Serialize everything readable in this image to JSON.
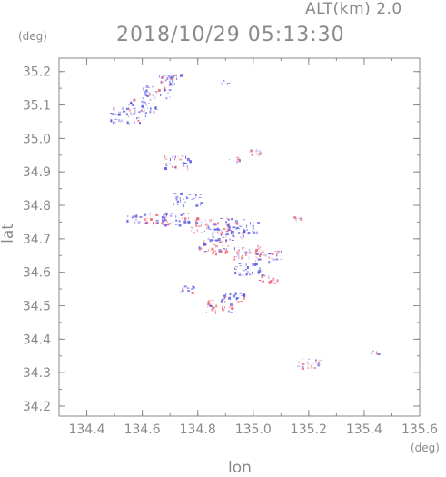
{
  "header": {
    "altitude_label": "ALT(km) 2.0",
    "datetime": "2018/10/29 05:13:30",
    "y_unit": "(deg)",
    "x_unit": "(deg)"
  },
  "axes": {
    "xlabel": "lon",
    "ylabel": "lat",
    "xlim": [
      134.3,
      135.6
    ],
    "ylim": [
      34.17,
      35.24
    ],
    "x_ticks": [
      "134.4",
      "134.6",
      "134.8",
      "135.0",
      "135.2",
      "135.4",
      "135.6"
    ],
    "y_ticks": [
      "34.2",
      "34.3",
      "34.4",
      "34.5",
      "34.6",
      "34.7",
      "34.8",
      "34.9",
      "35.0",
      "35.1",
      "35.2"
    ]
  },
  "colors": {
    "axis": "#8a8a8a",
    "approaching": "#5a5ae6",
    "receding": "#ee6a78"
  },
  "echo_clusters": [
    {
      "lon": 134.55,
      "lat": 35.07,
      "color": "approaching",
      "size": 7
    },
    {
      "lon": 134.6,
      "lat": 35.1,
      "color": "approaching",
      "size": 5
    },
    {
      "lon": 134.65,
      "lat": 35.14,
      "color": "approaching",
      "size": 5
    },
    {
      "lon": 134.7,
      "lat": 35.18,
      "color": "approaching",
      "size": 4
    },
    {
      "lon": 134.9,
      "lat": 35.17,
      "color": "approaching",
      "size": 1
    },
    {
      "lon": 134.72,
      "lat": 34.93,
      "color": "approaching",
      "size": 5
    },
    {
      "lon": 135.01,
      "lat": 34.96,
      "color": "receding",
      "size": 2
    },
    {
      "lon": 134.93,
      "lat": 34.94,
      "color": "approaching",
      "size": 1
    },
    {
      "lon": 134.76,
      "lat": 34.82,
      "color": "approaching",
      "size": 5
    },
    {
      "lon": 134.57,
      "lat": 34.76,
      "color": "approaching",
      "size": 3
    },
    {
      "lon": 134.65,
      "lat": 34.76,
      "color": "receding",
      "size": 5
    },
    {
      "lon": 134.72,
      "lat": 34.76,
      "color": "approaching",
      "size": 5
    },
    {
      "lon": 134.84,
      "lat": 34.74,
      "color": "receding",
      "size": 7
    },
    {
      "lon": 134.9,
      "lat": 34.72,
      "color": "approaching",
      "size": 7
    },
    {
      "lon": 134.96,
      "lat": 34.74,
      "color": "approaching",
      "size": 6
    },
    {
      "lon": 134.86,
      "lat": 34.68,
      "color": "receding",
      "size": 6
    },
    {
      "lon": 134.98,
      "lat": 34.66,
      "color": "receding",
      "size": 6
    },
    {
      "lon": 135.05,
      "lat": 34.65,
      "color": "receding",
      "size": 5
    },
    {
      "lon": 134.98,
      "lat": 34.61,
      "color": "approaching",
      "size": 5
    },
    {
      "lon": 135.05,
      "lat": 34.58,
      "color": "receding",
      "size": 3
    },
    {
      "lon": 135.16,
      "lat": 34.76,
      "color": "receding",
      "size": 1
    },
    {
      "lon": 134.76,
      "lat": 34.55,
      "color": "approaching",
      "size": 2
    },
    {
      "lon": 134.92,
      "lat": 34.53,
      "color": "approaching",
      "size": 4
    },
    {
      "lon": 134.88,
      "lat": 34.5,
      "color": "receding",
      "size": 5
    },
    {
      "lon": 135.2,
      "lat": 34.33,
      "color": "receding",
      "size": 4
    },
    {
      "lon": 135.44,
      "lat": 34.36,
      "color": "approaching",
      "size": 1
    }
  ]
}
